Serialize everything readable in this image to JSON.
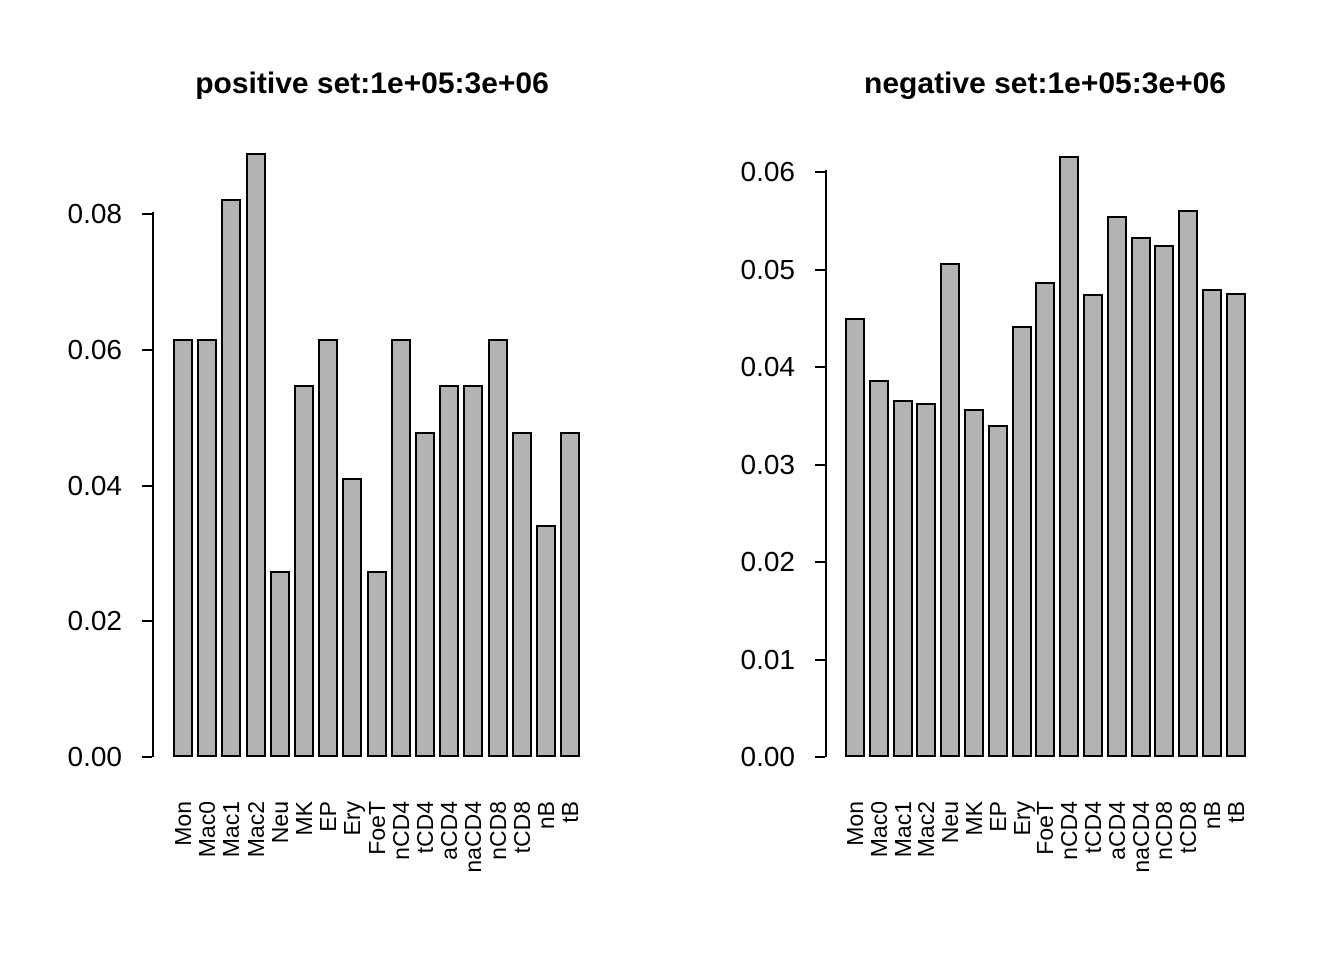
{
  "chart_data": [
    {
      "type": "bar",
      "title": "positive set:1e+05:3e+06",
      "categories": [
        "Mon",
        "Mac0",
        "Mac1",
        "Mac2",
        "Neu",
        "MK",
        "EP",
        "Ery",
        "FoeT",
        "nCD4",
        "tCD4",
        "aCD4",
        "naCD4",
        "nCD8",
        "tCD8",
        "nB",
        "tB"
      ],
      "values": [
        0.0616,
        0.0616,
        0.0822,
        0.089,
        0.0274,
        0.0548,
        0.0616,
        0.0411,
        0.0274,
        0.0616,
        0.0479,
        0.0548,
        0.0548,
        0.0616,
        0.0479,
        0.0342,
        0.0479
      ],
      "xlabel": "",
      "ylabel": "",
      "ylim": [
        0,
        0.08
      ],
      "yticks": [
        0,
        0.02,
        0.04,
        0.06,
        0.08
      ],
      "ytick_labels": [
        "0.00",
        "0.02",
        "0.04",
        "0.06",
        "0.08"
      ],
      "grid": false,
      "legend": "none",
      "bar_fill_color": "#b3b3b3",
      "bar_border_color": "#000000"
    },
    {
      "type": "bar",
      "title": "negative set:1e+05:3e+06",
      "categories": [
        "Mon",
        "Mac0",
        "Mac1",
        "Mac2",
        "Neu",
        "MK",
        "EP",
        "Ery",
        "FoeT",
        "nCD4",
        "tCD4",
        "aCD4",
        "naCD4",
        "nCD8",
        "tCD8",
        "nB",
        "tB"
      ],
      "values": [
        0.045,
        0.0387,
        0.0366,
        0.0363,
        0.0507,
        0.0357,
        0.0341,
        0.0442,
        0.0487,
        0.0616,
        0.0475,
        0.0555,
        0.0533,
        0.0525,
        0.0561,
        0.048,
        0.0476
      ],
      "xlabel": "",
      "ylabel": "",
      "ylim": [
        0,
        0.06
      ],
      "yticks": [
        0,
        0.01,
        0.02,
        0.03,
        0.04,
        0.05,
        0.06
      ],
      "ytick_labels": [
        "0.00",
        "0.01",
        "0.02",
        "0.03",
        "0.04",
        "0.05",
        "0.06"
      ],
      "grid": false,
      "legend": "none",
      "bar_fill_color": "#b3b3b3",
      "bar_border_color": "#000000"
    }
  ]
}
